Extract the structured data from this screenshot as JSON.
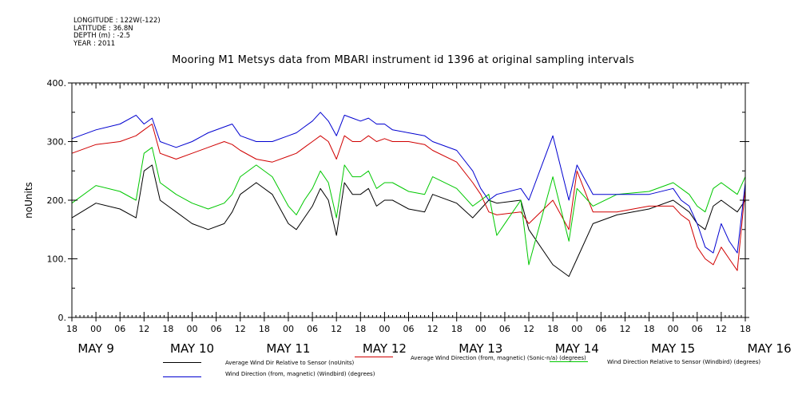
{
  "meta": {
    "longitude": "LONGITUDE : 122W(-122)",
    "latitude": "LATITUDE : 36.8N",
    "depth": "DEPTH (m) : -2.5",
    "year": "YEAR : 2011"
  },
  "chart_data": {
    "type": "line",
    "title": "Mooring M1 Metsys data from MBARI instrument id 1396 at original sampling intervals",
    "ylabel": "noUnits",
    "xlabel": "",
    "ylim": [
      0,
      400
    ],
    "y_ticks": [
      "0.",
      "100.",
      "200.",
      "300.",
      "400."
    ],
    "x_range_hours": [
      0,
      168
    ],
    "x_hour_ticks": [
      "18",
      "00",
      "06",
      "12",
      "18",
      "00",
      "06",
      "12",
      "18",
      "00",
      "06",
      "12",
      "18",
      "00",
      "06",
      "12",
      "18",
      "00",
      "06",
      "12",
      "18",
      "00",
      "06",
      "12",
      "18",
      "00",
      "06",
      "12",
      "18"
    ],
    "x_day_labels": [
      "MAY  9",
      "MAY 10",
      "MAY 11",
      "MAY 12",
      "MAY 13",
      "MAY 14",
      "MAY 15",
      "MAY 16"
    ],
    "grid": false,
    "legend_position": "bottom",
    "series": [
      {
        "name": "Average Wind Dir Relative to Sensor (noUnits)",
        "color": "#000000",
        "x": [
          0,
          6,
          12,
          16,
          18,
          20,
          22,
          24,
          26,
          30,
          34,
          38,
          40,
          42,
          46,
          50,
          54,
          56,
          58,
          60,
          62,
          64,
          66,
          68,
          70,
          72,
          74,
          76,
          78,
          80,
          84,
          88,
          90,
          96,
          100,
          102,
          104,
          106,
          112,
          114,
          120,
          124,
          126,
          130,
          136,
          144,
          150,
          152,
          154,
          156,
          158,
          160,
          162,
          164,
          166,
          168
        ],
        "values": [
          170,
          195,
          185,
          170,
          250,
          260,
          200,
          190,
          180,
          160,
          150,
          160,
          180,
          210,
          230,
          210,
          160,
          150,
          170,
          190,
          220,
          200,
          140,
          230,
          210,
          210,
          220,
          190,
          200,
          200,
          185,
          180,
          210,
          195,
          170,
          185,
          200,
          195,
          200,
          150,
          90,
          70,
          100,
          160,
          175,
          185,
          200,
          190,
          180,
          160,
          150,
          190,
          200,
          190,
          180,
          200
        ]
      },
      {
        "name": "Average Wind Direction (from, magnetic) (Sonic-n/a) (degrees)",
        "color": "#d00000",
        "x": [
          0,
          6,
          12,
          16,
          18,
          20,
          22,
          24,
          26,
          30,
          34,
          38,
          40,
          42,
          46,
          50,
          54,
          56,
          58,
          60,
          62,
          64,
          66,
          68,
          70,
          72,
          74,
          76,
          78,
          80,
          84,
          88,
          90,
          96,
          100,
          102,
          104,
          106,
          112,
          114,
          120,
          124,
          126,
          130,
          136,
          144,
          150,
          152,
          154,
          156,
          158,
          160,
          162,
          164,
          166,
          168
        ],
        "values": [
          280,
          295,
          300,
          310,
          320,
          330,
          280,
          275,
          270,
          280,
          290,
          300,
          295,
          285,
          270,
          265,
          275,
          280,
          290,
          300,
          310,
          300,
          270,
          310,
          300,
          300,
          310,
          300,
          305,
          300,
          300,
          295,
          285,
          265,
          230,
          210,
          180,
          175,
          180,
          160,
          200,
          150,
          250,
          180,
          180,
          190,
          190,
          175,
          165,
          120,
          100,
          90,
          120,
          100,
          80,
          220
        ]
      },
      {
        "name": "Wind Direction Relative to Sensor (Windbird) (degrees)",
        "color": "#00c800",
        "x": [
          0,
          6,
          12,
          16,
          18,
          20,
          22,
          24,
          26,
          30,
          34,
          38,
          40,
          42,
          46,
          50,
          54,
          56,
          58,
          60,
          62,
          64,
          66,
          68,
          70,
          72,
          74,
          76,
          78,
          80,
          84,
          88,
          90,
          96,
          100,
          102,
          104,
          106,
          112,
          114,
          120,
          124,
          126,
          130,
          136,
          144,
          150,
          152,
          154,
          156,
          158,
          160,
          162,
          164,
          166,
          168
        ],
        "values": [
          195,
          225,
          215,
          200,
          280,
          290,
          230,
          220,
          210,
          195,
          185,
          195,
          210,
          240,
          260,
          240,
          190,
          175,
          200,
          220,
          250,
          230,
          170,
          260,
          240,
          240,
          250,
          220,
          230,
          230,
          215,
          210,
          240,
          220,
          190,
          200,
          210,
          140,
          200,
          90,
          240,
          130,
          220,
          190,
          210,
          215,
          230,
          220,
          210,
          190,
          180,
          220,
          230,
          220,
          210,
          240
        ]
      },
      {
        "name": "Wind Direction (from, magnetic) (Windbird) (degrees)",
        "color": "#0000d0",
        "x": [
          0,
          6,
          12,
          16,
          18,
          20,
          22,
          24,
          26,
          30,
          34,
          38,
          40,
          42,
          46,
          50,
          54,
          56,
          58,
          60,
          62,
          64,
          66,
          68,
          70,
          72,
          74,
          76,
          78,
          80,
          84,
          88,
          90,
          96,
          100,
          102,
          104,
          106,
          112,
          114,
          120,
          124,
          126,
          130,
          136,
          144,
          150,
          152,
          154,
          156,
          158,
          160,
          162,
          164,
          166,
          168
        ],
        "values": [
          305,
          320,
          330,
          345,
          330,
          340,
          300,
          295,
          290,
          300,
          315,
          325,
          330,
          310,
          300,
          300,
          310,
          315,
          325,
          335,
          350,
          335,
          310,
          345,
          340,
          335,
          340,
          330,
          330,
          320,
          315,
          310,
          300,
          285,
          250,
          220,
          200,
          210,
          220,
          200,
          310,
          200,
          260,
          210,
          210,
          210,
          220,
          200,
          190,
          160,
          120,
          110,
          160,
          130,
          110,
          230
        ]
      }
    ]
  }
}
